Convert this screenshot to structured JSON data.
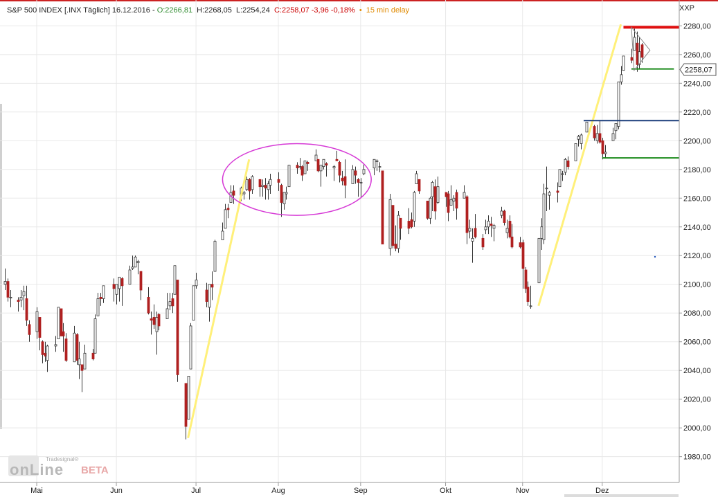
{
  "header": {
    "instrument": "S&P 500 INDEX [.INX Täglich] 16.12.2016",
    "open": "O:2266,81",
    "high": "H:2268,05",
    "low": "L:2254,24",
    "close_change": "C:2258,07 -3,96 -0,18%",
    "bullet": "•",
    "delay": "15 min delay",
    "colors": {
      "open": "#2e8b2e",
      "close_change": "#cc0000",
      "delay": "#e08a00"
    }
  },
  "axis_corner_label": "XXP",
  "last_price_label": "2258,07",
  "branding": {
    "small": "Tradesignal®",
    "main": "onLine",
    "beta": "BETA"
  },
  "chart_data": {
    "type": "candlestick",
    "ylim": [
      1962,
      2298
    ],
    "yticks": [
      1980,
      2000,
      2020,
      2040,
      2060,
      2080,
      2100,
      2120,
      2140,
      2160,
      2180,
      2200,
      2220,
      2240,
      2260,
      2280
    ],
    "ytick_labels": [
      "1980,00",
      "2000,00",
      "2020,00",
      "2040,00",
      "2060,00",
      "2080,00",
      "2100,00",
      "2120,00",
      "2140,00",
      "2160,00",
      "2180,00",
      "2200,00",
      "2220,00",
      "2240,00",
      "2260,00",
      "2280,00"
    ],
    "x_range": [
      "2016-04-20",
      "2016-12-30"
    ],
    "xticks": [
      {
        "date": "2016-05-02",
        "label": "Mai"
      },
      {
        "date": "2016-06-01",
        "label": "Jun"
      },
      {
        "date": "2016-07-01",
        "label": "Jul"
      },
      {
        "date": "2016-08-01",
        "label": "Aug"
      },
      {
        "date": "2016-09-01",
        "label": "Sep"
      },
      {
        "date": "2016-10-03",
        "label": "Okt"
      },
      {
        "date": "2016-11-01",
        "label": "Nov"
      },
      {
        "date": "2016-12-01",
        "label": "Dez"
      }
    ],
    "last_price": 2258.07,
    "colors": {
      "up": "#ffffff",
      "down": "#b02020",
      "wick": "#333333"
    },
    "candles": [
      [
        "2016-04-20",
        2100,
        2111,
        2096,
        2102
      ],
      [
        "2016-04-21",
        2102,
        2104,
        2088,
        2091
      ],
      [
        "2016-04-22",
        2091,
        2096,
        2084,
        2091
      ],
      [
        "2016-04-25",
        2089,
        2091,
        2081,
        2088
      ],
      [
        "2016-04-26",
        2089,
        2096,
        2084,
        2091
      ],
      [
        "2016-04-27",
        2092,
        2099,
        2082,
        2095
      ],
      [
        "2016-04-28",
        2090,
        2099,
        2071,
        2075
      ],
      [
        "2016-04-29",
        2072,
        2075,
        2060,
        2065
      ],
      [
        "2016-05-02",
        2067,
        2084,
        2062,
        2081
      ],
      [
        "2016-05-03",
        2077,
        2077,
        2054,
        2063
      ],
      [
        "2016-05-04",
        2060,
        2061,
        2045,
        2051
      ],
      [
        "2016-05-05",
        2052,
        2060,
        2046,
        2050
      ],
      [
        "2016-05-06",
        2047,
        2058,
        2039,
        2057
      ],
      [
        "2016-05-09",
        2057,
        2064,
        2053,
        2058
      ],
      [
        "2016-05-10",
        2062,
        2084,
        2062,
        2084
      ],
      [
        "2016-05-11",
        2083,
        2083,
        2064,
        2064
      ],
      [
        "2016-05-12",
        2067,
        2073,
        2053,
        2064
      ],
      [
        "2016-05-13",
        2062,
        2066,
        2046,
        2047
      ],
      [
        "2016-05-16",
        2046,
        2071,
        2046,
        2066
      ],
      [
        "2016-05-17",
        2065,
        2066,
        2044,
        2047
      ],
      [
        "2016-05-18",
        2044,
        2060,
        2034,
        2048
      ],
      [
        "2016-05-19",
        2044,
        2044,
        2025,
        2040
      ],
      [
        "2016-05-20",
        2041,
        2058,
        2041,
        2052
      ],
      [
        "2016-05-23",
        2052,
        2055,
        2047,
        2048
      ],
      [
        "2016-05-24",
        2052,
        2079,
        2052,
        2076
      ],
      [
        "2016-05-25",
        2078,
        2094,
        2078,
        2090
      ],
      [
        "2016-05-26",
        2091,
        2094,
        2085,
        2090
      ],
      [
        "2016-05-27",
        2090,
        2099,
        2087,
        2099
      ],
      [
        "2016-05-31",
        2100,
        2104,
        2088,
        2097
      ],
      [
        "2016-06-01",
        2093,
        2100,
        2086,
        2100
      ],
      [
        "2016-06-02",
        2097,
        2105,
        2088,
        2105
      ],
      [
        "2016-06-03",
        2104,
        2105,
        2085,
        2099
      ],
      [
        "2016-06-06",
        2100,
        2113,
        2100,
        2110
      ],
      [
        "2016-06-07",
        2111,
        2120,
        2110,
        2112
      ],
      [
        "2016-06-08",
        2112,
        2120,
        2112,
        2119
      ],
      [
        "2016-06-09",
        2115,
        2117,
        2107,
        2116
      ],
      [
        "2016-06-10",
        2109,
        2109,
        2089,
        2096
      ],
      [
        "2016-06-13",
        2091,
        2098,
        2079,
        2080
      ],
      [
        "2016-06-14",
        2076,
        2081,
        2065,
        2075
      ],
      [
        "2016-06-15",
        2077,
        2086,
        2069,
        2072
      ],
      [
        "2016-06-16",
        2067,
        2081,
        2051,
        2077
      ],
      [
        "2016-06-17",
        2079,
        2080,
        2068,
        2071
      ],
      [
        "2016-06-20",
        2076,
        2094,
        2076,
        2083
      ],
      [
        "2016-06-21",
        2085,
        2094,
        2082,
        2088
      ],
      [
        "2016-06-22",
        2090,
        2094,
        2080,
        2085
      ],
      [
        "2016-06-23",
        2093,
        2113,
        2093,
        2113
      ],
      [
        "2016-06-24",
        2103,
        2103,
        2032,
        2037
      ],
      [
        "2016-06-27",
        2031,
        2031,
        1992,
        2001
      ],
      [
        "2016-06-28",
        2006,
        2036,
        2006,
        2036
      ],
      [
        "2016-06-29",
        2041,
        2073,
        2041,
        2071
      ],
      [
        "2016-06-30",
        2075,
        2099,
        2075,
        2099
      ],
      [
        "2016-07-01",
        2099,
        2108,
        2097,
        2103
      ],
      [
        "2016-07-05",
        2096,
        2101,
        2084,
        2088
      ],
      [
        "2016-07-06",
        2084,
        2100,
        2074,
        2100
      ],
      [
        "2016-07-07",
        2100,
        2109,
        2089,
        2098
      ],
      [
        "2016-07-08",
        2109,
        2131,
        2109,
        2130
      ],
      [
        "2016-07-11",
        2131,
        2143,
        2131,
        2137
      ],
      [
        "2016-07-12",
        2139,
        2156,
        2139,
        2152
      ],
      [
        "2016-07-13",
        2153,
        2156,
        2146,
        2152
      ],
      [
        "2016-07-14",
        2157,
        2169,
        2157,
        2164
      ],
      [
        "2016-07-15",
        2165,
        2169,
        2156,
        2162
      ],
      [
        "2016-07-18",
        2162,
        2168,
        2158,
        2167
      ],
      [
        "2016-07-19",
        2163,
        2165,
        2159,
        2164
      ],
      [
        "2016-07-20",
        2166,
        2175,
        2165,
        2173
      ],
      [
        "2016-07-21",
        2173,
        2174,
        2159,
        2165
      ],
      [
        "2016-07-22",
        2166,
        2176,
        2163,
        2175
      ],
      [
        "2016-07-25",
        2173,
        2173,
        2161,
        2168
      ],
      [
        "2016-07-26",
        2168,
        2173,
        2161,
        2169
      ],
      [
        "2016-07-27",
        2169,
        2174,
        2159,
        2167
      ],
      [
        "2016-07-28",
        2166,
        2172,
        2159,
        2170
      ],
      [
        "2016-07-29",
        2169,
        2177,
        2163,
        2173
      ],
      [
        "2016-08-01",
        2173,
        2178,
        2165,
        2171
      ],
      [
        "2016-08-02",
        2169,
        2170,
        2147,
        2157
      ],
      [
        "2016-08-03",
        2156,
        2164,
        2152,
        2164
      ],
      [
        "2016-08-04",
        2163,
        2168,
        2159,
        2164
      ],
      [
        "2016-08-05",
        2168,
        2182,
        2168,
        2183
      ],
      [
        "2016-08-08",
        2183,
        2185,
        2177,
        2181
      ],
      [
        "2016-08-09",
        2182,
        2188,
        2180,
        2182
      ],
      [
        "2016-08-10",
        2182,
        2183,
        2172,
        2176
      ],
      [
        "2016-08-11",
        2177,
        2186,
        2177,
        2186
      ],
      [
        "2016-08-12",
        2185,
        2186,
        2179,
        2184
      ],
      [
        "2016-08-15",
        2186,
        2194,
        2186,
        2190
      ],
      [
        "2016-08-16",
        2187,
        2187,
        2178,
        2179
      ],
      [
        "2016-08-17",
        2179,
        2183,
        2168,
        2183
      ],
      [
        "2016-08-18",
        2182,
        2187,
        2180,
        2187
      ],
      [
        "2016-08-19",
        2184,
        2185,
        2175,
        2183
      ],
      [
        "2016-08-22",
        2181,
        2183,
        2172,
        2182
      ],
      [
        "2016-08-23",
        2187,
        2193,
        2186,
        2186
      ],
      [
        "2016-08-24",
        2185,
        2186,
        2171,
        2176
      ],
      [
        "2016-08-25",
        2174,
        2179,
        2169,
        2172
      ],
      [
        "2016-08-26",
        2175,
        2187,
        2160,
        2169
      ],
      [
        "2016-08-29",
        2170,
        2183,
        2170,
        2180
      ],
      [
        "2016-08-30",
        2179,
        2182,
        2170,
        2176
      ],
      [
        "2016-08-31",
        2173,
        2174,
        2161,
        2171
      ],
      [
        "2016-09-01",
        2171,
        2174,
        2161,
        2171
      ],
      [
        "2016-09-02",
        2177,
        2184,
        2176,
        2180
      ],
      [
        "2016-09-06",
        2181,
        2187,
        2176,
        2187
      ],
      [
        "2016-09-07",
        2186,
        2187,
        2179,
        2186
      ],
      [
        "2016-09-08",
        2182,
        2185,
        2178,
        2182
      ],
      [
        "2016-09-09",
        2179,
        2179,
        2128,
        2128
      ],
      [
        "2016-09-12",
        2125,
        2163,
        2120,
        2159
      ],
      [
        "2016-09-13",
        2155,
        2155,
        2125,
        2127
      ],
      [
        "2016-09-14",
        2128,
        2141,
        2123,
        2125
      ],
      [
        "2016-09-15",
        2125,
        2151,
        2122,
        2148
      ],
      [
        "2016-09-16",
        2146,
        2146,
        2131,
        2139
      ],
      [
        "2016-09-19",
        2144,
        2153,
        2135,
        2139
      ],
      [
        "2016-09-20",
        2145,
        2150,
        2139,
        2140
      ],
      [
        "2016-09-21",
        2144,
        2165,
        2140,
        2164
      ],
      [
        "2016-09-22",
        2170,
        2179,
        2170,
        2177
      ],
      [
        "2016-09-23",
        2173,
        2173,
        2163,
        2165
      ],
      [
        "2016-09-26",
        2158,
        2158,
        2145,
        2146
      ],
      [
        "2016-09-27",
        2146,
        2161,
        2142,
        2160
      ],
      [
        "2016-09-28",
        2161,
        2172,
        2151,
        2171
      ],
      [
        "2016-09-29",
        2168,
        2173,
        2145,
        2151
      ],
      [
        "2016-09-30",
        2157,
        2175,
        2156,
        2168
      ],
      [
        "2016-10-03",
        2164,
        2164,
        2154,
        2161
      ],
      [
        "2016-10-04",
        2163,
        2165,
        2144,
        2150
      ],
      [
        "2016-10-05",
        2155,
        2169,
        2155,
        2159
      ],
      [
        "2016-10-06",
        2158,
        2162,
        2151,
        2160
      ],
      [
        "2016-10-07",
        2164,
        2166,
        2145,
        2153
      ],
      [
        "2016-10-10",
        2160,
        2169,
        2160,
        2164
      ],
      [
        "2016-10-11",
        2161,
        2162,
        2128,
        2136
      ],
      [
        "2016-10-12",
        2137,
        2145,
        2132,
        2139
      ],
      [
        "2016-10-13",
        2130,
        2139,
        2115,
        2132
      ],
      [
        "2016-10-14",
        2139,
        2149,
        2132,
        2133
      ],
      [
        "2016-10-17",
        2132,
        2135,
        2124,
        2126
      ],
      [
        "2016-10-18",
        2138,
        2145,
        2135,
        2140
      ],
      [
        "2016-10-19",
        2140,
        2148,
        2135,
        2144
      ],
      [
        "2016-10-20",
        2142,
        2147,
        2133,
        2141
      ],
      [
        "2016-10-21",
        2139,
        2142,
        2130,
        2141
      ],
      [
        "2016-10-24",
        2148,
        2154,
        2146,
        2151
      ],
      [
        "2016-10-25",
        2151,
        2152,
        2141,
        2143
      ],
      [
        "2016-10-26",
        2136,
        2145,
        2132,
        2139
      ],
      [
        "2016-10-27",
        2144,
        2148,
        2132,
        2133
      ],
      [
        "2016-10-28",
        2133,
        2142,
        2125,
        2126
      ],
      [
        "2016-10-31",
        2129,
        2133,
        2125,
        2126
      ],
      [
        "2016-11-01",
        2129,
        2131,
        2097,
        2111
      ],
      [
        "2016-11-02",
        2110,
        2112,
        2094,
        2097
      ],
      [
        "2016-11-03",
        2098,
        2102,
        2085,
        2088
      ],
      [
        "2016-11-04",
        2085,
        2099,
        2083,
        2085
      ],
      [
        "2016-11-07",
        2101,
        2132,
        2101,
        2132
      ],
      [
        "2016-11-08",
        2132,
        2146,
        2124,
        2140
      ],
      [
        "2016-11-09",
        2131,
        2170,
        2128,
        2163
      ],
      [
        "2016-11-10",
        2167,
        2182,
        2151,
        2167
      ],
      [
        "2016-11-11",
        2162,
        2165,
        2152,
        2164
      ],
      [
        "2016-11-14",
        2165,
        2171,
        2157,
        2164
      ],
      [
        "2016-11-15",
        2168,
        2180,
        2168,
        2180
      ],
      [
        "2016-11-16",
        2177,
        2179,
        2172,
        2177
      ],
      [
        "2016-11-17",
        2178,
        2188,
        2176,
        2187
      ],
      [
        "2016-11-18",
        2186,
        2189,
        2180,
        2182
      ],
      [
        "2016-11-21",
        2186,
        2198,
        2186,
        2198
      ],
      [
        "2016-11-22",
        2201,
        2204,
        2196,
        2203
      ],
      [
        "2016-11-23",
        2198,
        2205,
        2194,
        2204
      ],
      [
        "2016-11-25",
        2206,
        2213,
        2206,
        2213
      ],
      [
        "2016-11-28",
        2210,
        2211,
        2200,
        2202
      ],
      [
        "2016-11-29",
        2200,
        2211,
        2198,
        2205
      ],
      [
        "2016-11-30",
        2205,
        2214,
        2198,
        2199
      ],
      [
        "2016-12-01",
        2200,
        2202,
        2187,
        2191
      ],
      [
        "2016-12-02",
        2191,
        2197,
        2188,
        2192
      ],
      [
        "2016-12-05",
        2200,
        2209,
        2200,
        2205
      ],
      [
        "2016-12-06",
        2207,
        2212,
        2201,
        2212
      ],
      [
        "2016-12-07",
        2210,
        2241,
        2208,
        2241
      ],
      [
        "2016-12-08",
        2241,
        2252,
        2239,
        2246
      ],
      [
        "2016-12-09",
        2249,
        2259,
        2249,
        2259
      ],
      [
        "2016-12-12",
        2258,
        2264,
        2254,
        2256
      ],
      [
        "2016-12-13",
        2263,
        2278,
        2263,
        2272
      ],
      [
        "2016-12-14",
        2268,
        2276,
        2248,
        2253
      ],
      [
        "2016-12-15",
        2253,
        2272,
        2250,
        2262
      ],
      [
        "2016-12-16",
        2266.81,
        2268.05,
        2254.24,
        2258.07
      ]
    ],
    "trendlines": [
      {
        "start": [
          "2016-06-28",
          1993
        ],
        "end": [
          "2016-07-21",
          2187
        ],
        "color": "#fff07a"
      },
      {
        "start": [
          "2016-11-07",
          2085
        ],
        "end": [
          "2016-12-08",
          2281
        ],
        "color": "#fff07a"
      }
    ],
    "horizontal_lines": [
      {
        "from": "2016-12-09",
        "to": "2016-12-30",
        "y": 2279,
        "color": "#e01010"
      },
      {
        "from": "2016-12-12",
        "to": "2016-12-28",
        "y": 2250,
        "color": "#1a8a1a"
      },
      {
        "from": "2016-11-24",
        "to": "2016-12-30",
        "y": 2214,
        "color": "#1a3d7a"
      },
      {
        "from": "2016-12-01",
        "to": "2016-12-30",
        "y": 2188,
        "color": "#1a8a1a"
      }
    ],
    "ellipse": {
      "center": [
        "2016-08-08",
        2173
      ],
      "rx_days": 28,
      "ry": 25,
      "color": "#d63ad6"
    },
    "triangle": {
      "points": [
        [
          "2016-12-12",
          2279
        ],
        [
          "2016-12-19",
          2263
        ],
        [
          "2016-12-13",
          2249
        ]
      ],
      "color": "#888888"
    }
  }
}
